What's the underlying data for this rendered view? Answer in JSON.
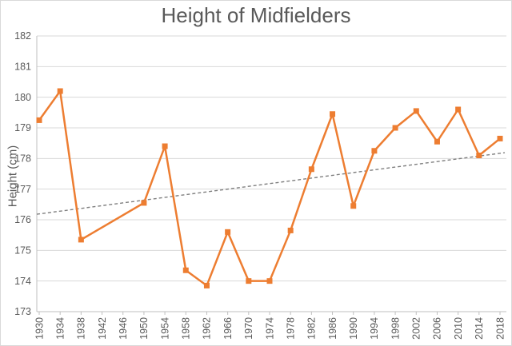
{
  "chart_data": {
    "type": "line",
    "title": "Height of Midfielders",
    "xlabel": "",
    "ylabel": "Height (cm)",
    "ylim": [
      173,
      182
    ],
    "ytick_step": 1,
    "ytick_labels": [
      "173",
      "174",
      "175",
      "176",
      "177",
      "178",
      "179",
      "180",
      "181",
      "182"
    ],
    "xtick_labels": [
      "1930",
      "1934",
      "1938",
      "1942",
      "1946",
      "1950",
      "1954",
      "1958",
      "1962",
      "1966",
      "1970",
      "1974",
      "1978",
      "1982",
      "1986",
      "1990",
      "1994",
      "1998",
      "2002",
      "2006",
      "2010",
      "2014",
      "2018"
    ],
    "x": [
      1930,
      1934,
      1938,
      1950,
      1954,
      1958,
      1962,
      1966,
      1970,
      1974,
      1978,
      1982,
      1986,
      1990,
      1994,
      1998,
      2002,
      2006,
      2010,
      2014,
      2018
    ],
    "values": [
      179.25,
      180.2,
      175.35,
      176.55,
      178.4,
      174.35,
      173.85,
      175.6,
      174.0,
      174.0,
      175.65,
      177.65,
      179.45,
      176.45,
      178.25,
      179.0,
      179.55,
      178.55,
      179.6,
      178.1,
      178.65
    ],
    "trendline": {
      "style": "dashed",
      "y_at_first_x": 176.18,
      "y_at_last_x": 178.19,
      "color": "#7f7f7f"
    },
    "grid": true,
    "legend": "none",
    "marker": "square",
    "colors": {
      "series_line": "#ED7D31",
      "marker_fill": "#ED7D31",
      "gridline": "#d9d9d9",
      "axis_line": "#bfbfbf",
      "tick_text": "#595959",
      "title_text": "#595959",
      "background": "#ffffff"
    }
  }
}
